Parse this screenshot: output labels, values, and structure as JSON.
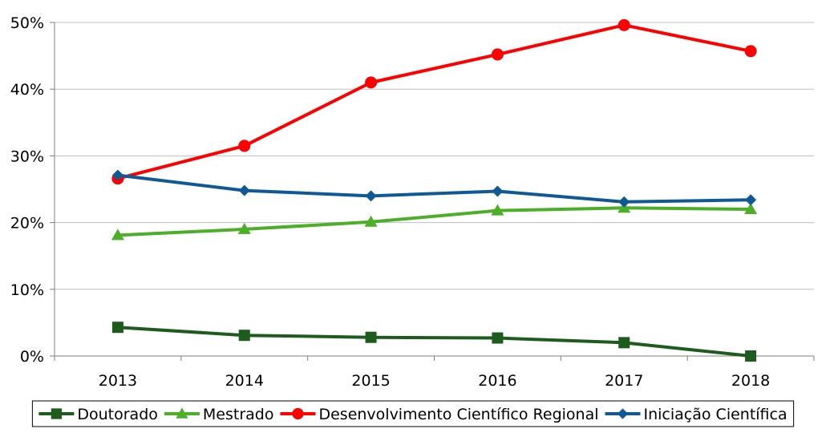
{
  "chart_data": {
    "type": "line",
    "title": "",
    "xlabel": "",
    "ylabel": "",
    "categories": [
      "2013",
      "2014",
      "2015",
      "2016",
      "2017",
      "2018"
    ],
    "ylim": [
      0,
      0.5
    ],
    "yticks": [
      "0%",
      "10%",
      "20%",
      "30%",
      "40%",
      "50%"
    ],
    "grid": "horizontal",
    "legend_position": "bottom",
    "series": [
      {
        "name": "Doutorado",
        "color": "#1e5c1e",
        "marker": "square",
        "values": [
          0.043,
          0.031,
          0.028,
          0.027,
          0.02,
          0.0
        ]
      },
      {
        "name": "Mestrado",
        "color": "#4caf28",
        "marker": "triangle",
        "values": [
          0.181,
          0.19,
          0.201,
          0.218,
          0.222,
          0.22
        ]
      },
      {
        "name": "Desenvolvimento Científico Regional",
        "color": "#ff0000",
        "marker": "circle",
        "values": [
          0.266,
          0.315,
          0.41,
          0.452,
          0.496,
          0.457
        ]
      },
      {
        "name": "Iniciação Científica",
        "color": "#0f5a96",
        "marker": "diamond",
        "values": [
          0.271,
          0.248,
          0.24,
          0.247,
          0.231,
          0.234
        ]
      }
    ]
  }
}
